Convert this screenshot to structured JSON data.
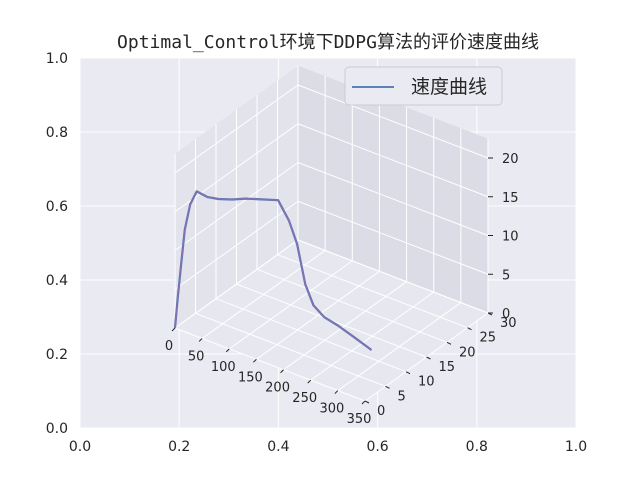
{
  "title": "Optimal_Control环境下DDPG算法的评价速度曲线",
  "colors": {
    "axes_bg": "#eaeaf2",
    "pane_left": "#e3e3ec",
    "pane_right": "#dcdce6",
    "pane_floor": "#e7e7ef",
    "grid": "#ffffff",
    "line": "#4c72b0",
    "line_overlay": "#8172b3"
  },
  "legend": {
    "label": "速度曲线",
    "location": "upper right"
  },
  "outer_axes": {
    "xticks": [
      "0.0",
      "0.2",
      "0.4",
      "0.6",
      "0.8",
      "1.0"
    ],
    "yticks": [
      "0.0",
      "0.2",
      "0.4",
      "0.6",
      "0.8",
      "1.0"
    ]
  },
  "axes3d": {
    "xticks": [
      "0",
      "50",
      "100",
      "150",
      "200",
      "250",
      "300",
      "350"
    ],
    "yticks": [
      "0",
      "5",
      "10",
      "15",
      "20",
      "25",
      "30"
    ],
    "zticks": [
      "0",
      "5",
      "10",
      "15",
      "20"
    ]
  },
  "chart_data": {
    "type": "line",
    "projection": "3d",
    "title": "Optimal_Control环境下DDPG算法的评价速度曲线",
    "series": [
      {
        "name": "速度曲线",
        "color": "#4c72b0",
        "x": [
          0,
          5,
          12,
          18,
          28,
          40,
          60,
          80,
          105,
          130,
          160,
          190,
          210,
          225,
          240,
          255,
          275,
          300,
          330,
          362
        ],
        "y": [
          0,
          0,
          0,
          0,
          0,
          0,
          0,
          0,
          0,
          0,
          0,
          0,
          0,
          0,
          0,
          0,
          0,
          0,
          0,
          0
        ],
        "z": [
          0,
          4,
          9,
          13.2,
          16.7,
          18.7,
          18.5,
          18.8,
          19.4,
          20.2,
          20.9,
          21.6,
          19.5,
          16.9,
          12.1,
          9.8,
          8.8,
          8.4,
          7.7,
          6.9
        ]
      }
    ],
    "xlim": [
      0,
      350
    ],
    "ylim": [
      0,
      30
    ],
    "zlim": [
      0,
      20
    ],
    "grid": true,
    "legend": "upper right"
  }
}
